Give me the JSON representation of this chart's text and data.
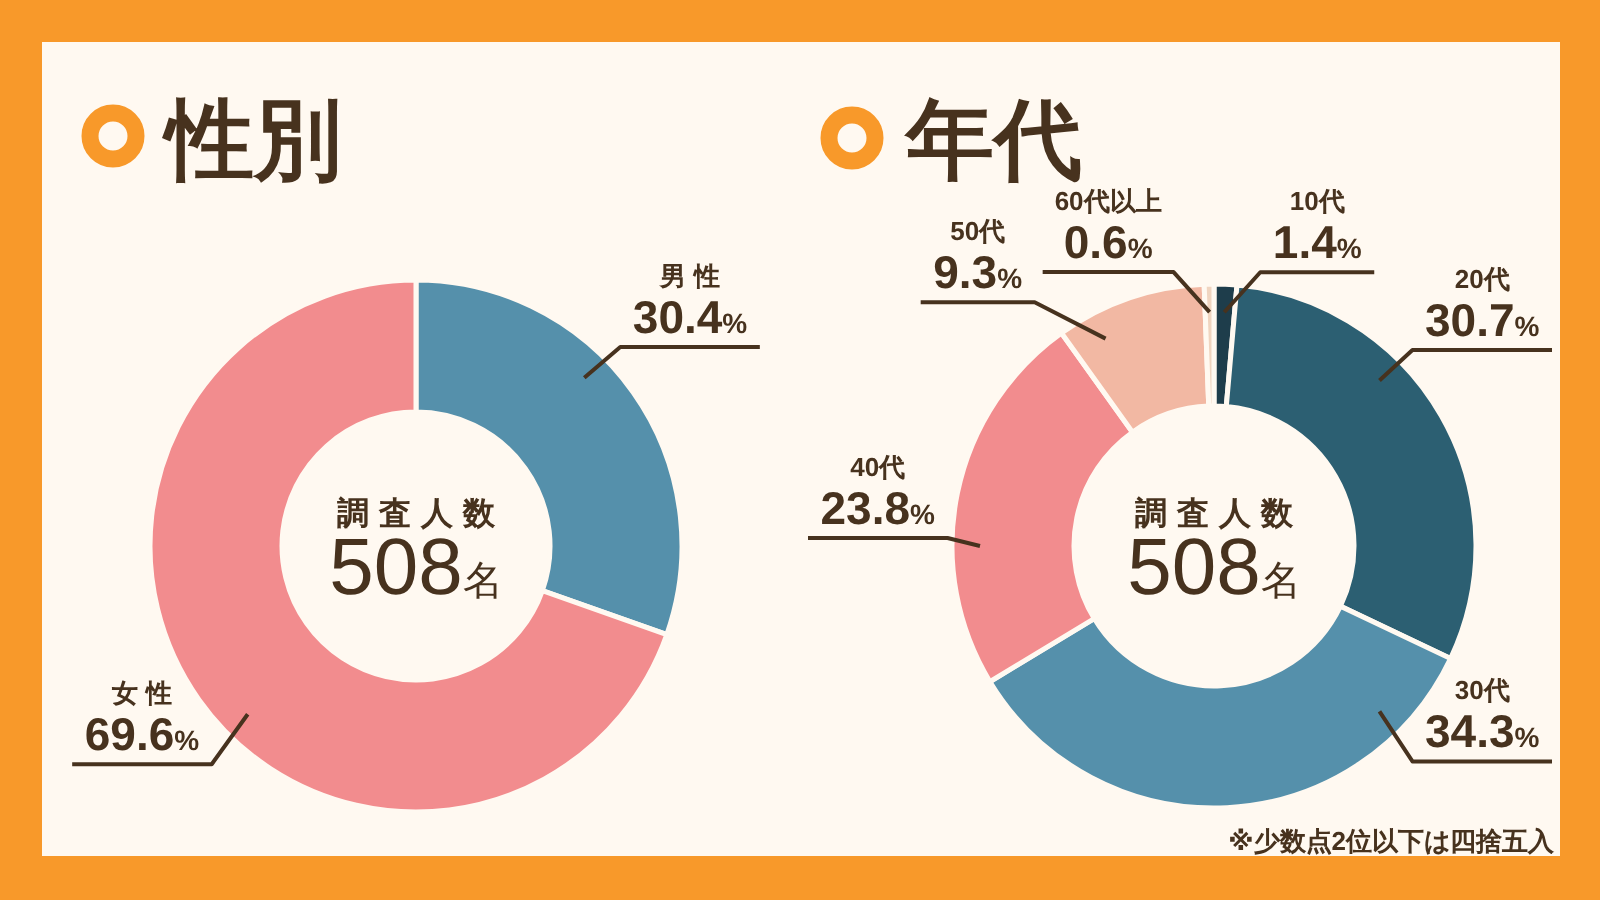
{
  "chart_data": [
    {
      "type": "donut",
      "title": "性別",
      "categories": [
        "男性",
        "女性"
      ],
      "values": [
        30.4,
        69.6
      ],
      "value_labels": [
        "30.4%",
        "69.6%"
      ],
      "colors": [
        "#5590ab",
        "#f28c8e"
      ],
      "annotations": [
        "調査人数",
        "508名"
      ]
    },
    {
      "type": "donut",
      "title": "年代",
      "categories": [
        "10代",
        "20代",
        "30代",
        "40代",
        "50代",
        "60代以上"
      ],
      "values": [
        1.4,
        30.7,
        34.3,
        23.8,
        9.3,
        0.6
      ],
      "value_labels": [
        "1.4%",
        "30.7%",
        "34.3%",
        "23.8%",
        "9.3%",
        "0.6%"
      ],
      "colors": [
        "#1e3d4b",
        "#2c5f72",
        "#5590ab",
        "#f28c8e",
        "#f2b8a3",
        "#f0d5c0"
      ],
      "annotations": [
        "調査人数",
        "508名",
        "※少数点2位以下は四捨五入"
      ]
    }
  ]
}
